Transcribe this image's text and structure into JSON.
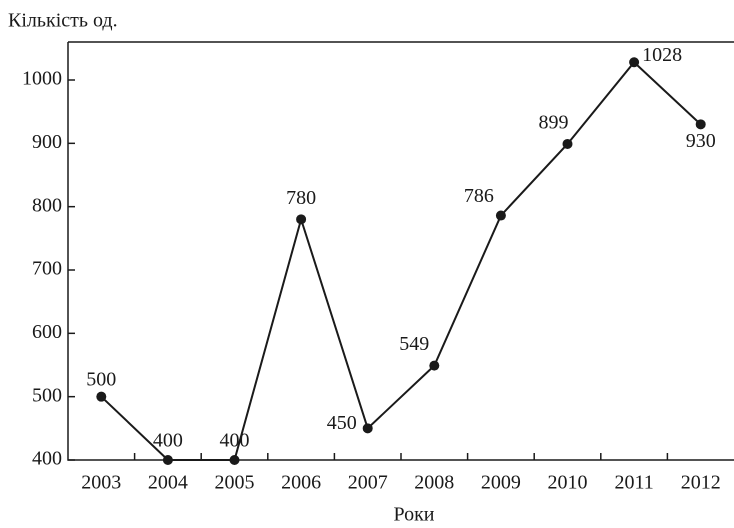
{
  "chart_data": {
    "type": "line",
    "y_label": "Кількість од.",
    "x_label": "Роки",
    "categories": [
      "2003",
      "2004",
      "2005",
      "2006",
      "2007",
      "2008",
      "2009",
      "2010",
      "2011",
      "2012"
    ],
    "values": [
      500,
      400,
      400,
      780,
      450,
      549,
      786,
      899,
      1028,
      930
    ],
    "color": "#1a1a1a",
    "ylim": [
      400,
      1060
    ],
    "yticks": [
      400,
      500,
      600,
      700,
      800,
      900,
      1000
    ]
  }
}
